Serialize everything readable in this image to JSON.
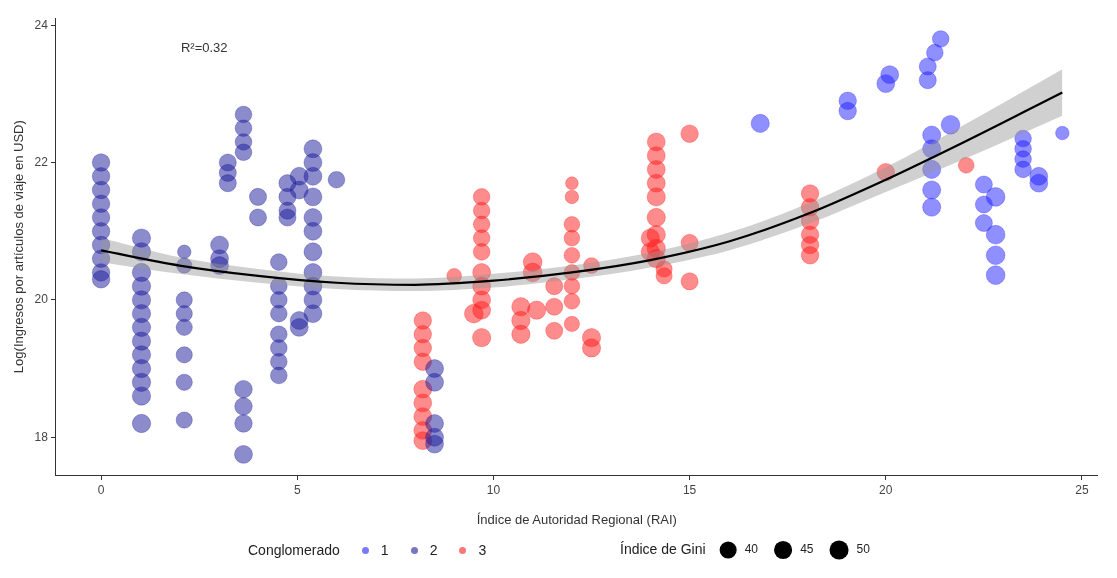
{
  "chart_data": {
    "type": "bubble",
    "xlabel": "Índice de Autoridad Regional (RAI)",
    "ylabel": "Log(Ingresos por artículos de viaje en USD)",
    "legend_title": "Conglomerado",
    "legend": "bottom",
    "grid": false,
    "xlim": [
      -1.15,
      25.4
    ],
    "xticks": [
      0,
      5,
      10,
      15,
      20,
      25
    ],
    "ylim": [
      17.45,
      24.1
    ],
    "yticks": [
      18,
      20,
      22,
      24
    ],
    "size_legend": [
      40,
      45,
      50
    ],
    "annotations": [
      "R²=0.32",
      "Índice de Gini"
    ],
    "series": [
      {
        "name": "1",
        "color": "#2020ff",
        "x": [
          16.8,
          19.03,
          19.03,
          20.0,
          20.1,
          21.07,
          21.07,
          21.25,
          21.4,
          21.17,
          21.17,
          21.17,
          21.17,
          21.17,
          21.65,
          22.5,
          22.5,
          22.5,
          22.8,
          22.8,
          22.8,
          22.8,
          23.5,
          23.5,
          23.5,
          23.5,
          23.9,
          23.9,
          24.5
        ],
        "values": [
          22.57,
          22.9,
          22.75,
          23.15,
          23.28,
          23.4,
          23.2,
          23.6,
          23.8,
          22.4,
          22.2,
          21.9,
          21.6,
          21.35,
          22.55,
          21.68,
          21.39,
          21.12,
          21.5,
          20.95,
          20.65,
          20.36,
          22.35,
          22.2,
          22.05,
          21.9,
          21.8,
          21.7,
          22.43
        ],
        "sizes": [
          45,
          42,
          42,
          44,
          44,
          40,
          40,
          38,
          38,
          45,
          45,
          45,
          45,
          45,
          48,
          40,
          40,
          40,
          48,
          48,
          48,
          48,
          38,
          38,
          38,
          38,
          44,
          44,
          25
        ]
      },
      {
        "name": "2",
        "color": "#1a1a99",
        "x": [
          0,
          0,
          0,
          0,
          0,
          0,
          0,
          0,
          0,
          0,
          1.03,
          1.03,
          1.03,
          1.03,
          1.03,
          1.03,
          1.03,
          1.03,
          1.03,
          1.03,
          1.03,
          1.03,
          1.03,
          2.12,
          2.12,
          2.12,
          2.12,
          2.12,
          2.12,
          2.12,
          2.12,
          3.02,
          3.02,
          3.02,
          3.23,
          3.23,
          3.23,
          3.63,
          3.63,
          3.63,
          3.63,
          3.63,
          3.63,
          3.63,
          3.63,
          4.0,
          4.0,
          4.53,
          4.53,
          4.53,
          4.53,
          4.53,
          4.53,
          4.53,
          4.53,
          4.75,
          4.75,
          4.75,
          4.75,
          5.05,
          5.05,
          5.05,
          5.05,
          5.4,
          5.4,
          5.4,
          5.4,
          5.4,
          5.4,
          5.4,
          5.4,
          5.4,
          5.4,
          5.4,
          6.0,
          8.5,
          8.5,
          8.5,
          8.5,
          8.5
        ],
        "values": [
          22.0,
          21.8,
          21.6,
          21.4,
          21.2,
          21.0,
          20.8,
          20.6,
          20.4,
          20.3,
          20.9,
          20.7,
          20.4,
          20.2,
          20.0,
          19.8,
          19.6,
          19.4,
          19.2,
          19.0,
          18.8,
          18.6,
          18.2,
          20.7,
          20.5,
          20.0,
          19.8,
          19.6,
          19.2,
          18.8,
          18.25,
          20.8,
          20.6,
          20.5,
          22.0,
          21.85,
          21.7,
          22.7,
          22.5,
          22.3,
          22.15,
          18.7,
          18.45,
          18.2,
          17.75,
          21.5,
          21.2,
          20.55,
          20.2,
          20.0,
          19.8,
          19.5,
          19.3,
          19.1,
          18.9,
          21.7,
          21.5,
          21.3,
          21.2,
          21.8,
          21.6,
          19.7,
          19.6,
          22.2,
          22.0,
          21.8,
          21.5,
          21.2,
          21.0,
          20.7,
          20.4,
          20.2,
          20.0,
          19.8,
          21.75,
          19.0,
          18.8,
          18.2,
          18.0,
          17.9
        ],
        "sizes": [
          42,
          42,
          42,
          42,
          42,
          42,
          42,
          42,
          42,
          42,
          46,
          46,
          46,
          46,
          46,
          46,
          46,
          46,
          46,
          46,
          46,
          46,
          46,
          25,
          32,
          36,
          36,
          36,
          36,
          36,
          36,
          44,
          44,
          44,
          40,
          40,
          40,
          38,
          38,
          38,
          38,
          42,
          42,
          42,
          44,
          40,
          40,
          38,
          38,
          38,
          38,
          38,
          38,
          38,
          38,
          40,
          40,
          40,
          40,
          44,
          44,
          44,
          44,
          44,
          44,
          44,
          44,
          44,
          44,
          44,
          44,
          44,
          44,
          44,
          38,
          44,
          44,
          44,
          44,
          44
        ]
      },
      {
        "name": "3",
        "color": "#ff1a1a",
        "x": [
          8.2,
          8.2,
          8.2,
          8.2,
          8.2,
          8.2,
          8.2,
          8.2,
          8.2,
          9.0,
          9.7,
          9.7,
          9.7,
          9.7,
          9.7,
          9.7,
          9.7,
          9.7,
          9.7,
          9.7,
          9.5,
          11.0,
          11.0,
          10.7,
          10.7,
          10.7,
          11.1,
          11.55,
          11.55,
          11.55,
          12.0,
          12.0,
          12.0,
          12.0,
          12.0,
          12.0,
          12.0,
          12.0,
          12.0,
          12.5,
          12.5,
          12.5,
          14.15,
          14.15,
          14.15,
          14.15,
          14.15,
          14.15,
          14.15,
          14.15,
          14.15,
          14.0,
          14.0,
          15.0,
          15.0,
          15.0,
          14.35,
          14.35,
          18.07,
          18.07,
          18.07,
          18.07,
          18.07,
          18.07,
          20.0,
          22.05
        ],
        "values": [
          19.7,
          19.5,
          19.3,
          19.1,
          18.7,
          18.5,
          18.3,
          18.1,
          17.95,
          20.35,
          21.5,
          21.3,
          21.1,
          20.9,
          20.7,
          20.4,
          20.2,
          20.0,
          19.85,
          19.45,
          19.8,
          20.55,
          20.4,
          19.9,
          19.7,
          19.5,
          19.85,
          20.2,
          19.9,
          19.55,
          21.7,
          21.5,
          21.1,
          20.9,
          20.65,
          20.4,
          20.2,
          19.98,
          19.65,
          20.5,
          19.45,
          19.3,
          22.3,
          22.1,
          21.9,
          21.7,
          21.5,
          21.2,
          20.95,
          20.75,
          20.6,
          20.9,
          20.7,
          22.42,
          20.83,
          20.27,
          20.45,
          20.35,
          21.55,
          21.35,
          21.15,
          20.95,
          20.8,
          20.65,
          21.86,
          21.96
        ],
        "sizes": [
          42,
          42,
          42,
          42,
          44,
          44,
          44,
          44,
          44,
          30,
          38,
          38,
          38,
          38,
          38,
          44,
          44,
          44,
          44,
          46,
          48,
          48,
          48,
          46,
          46,
          46,
          46,
          40,
          40,
          40,
          22,
          25,
          34,
          34,
          34,
          34,
          34,
          34,
          32,
          34,
          46,
          46,
          44,
          44,
          44,
          44,
          46,
          46,
          46,
          46,
          46,
          46,
          46,
          42,
          40,
          40,
          36,
          36,
          42,
          42,
          42,
          42,
          42,
          42,
          42,
          34
        ]
      },
      {
        "type": "line",
        "color": "#000000",
        "x": [
          0,
          2,
          4,
          6,
          8,
          10,
          12,
          14,
          16,
          18,
          20,
          22,
          24.5
        ],
        "values": [
          20.72,
          20.5,
          20.35,
          20.25,
          20.22,
          20.28,
          20.4,
          20.58,
          20.85,
          21.25,
          21.75,
          22.3,
          23.02
        ],
        "lower": [
          20.55,
          20.38,
          20.25,
          20.16,
          20.13,
          20.18,
          20.3,
          20.47,
          20.72,
          21.1,
          21.57,
          22.05,
          22.68
        ],
        "upper": [
          20.9,
          20.62,
          20.45,
          20.34,
          20.31,
          20.38,
          20.5,
          20.69,
          20.98,
          21.4,
          21.93,
          22.55,
          23.36
        ]
      }
    ]
  }
}
